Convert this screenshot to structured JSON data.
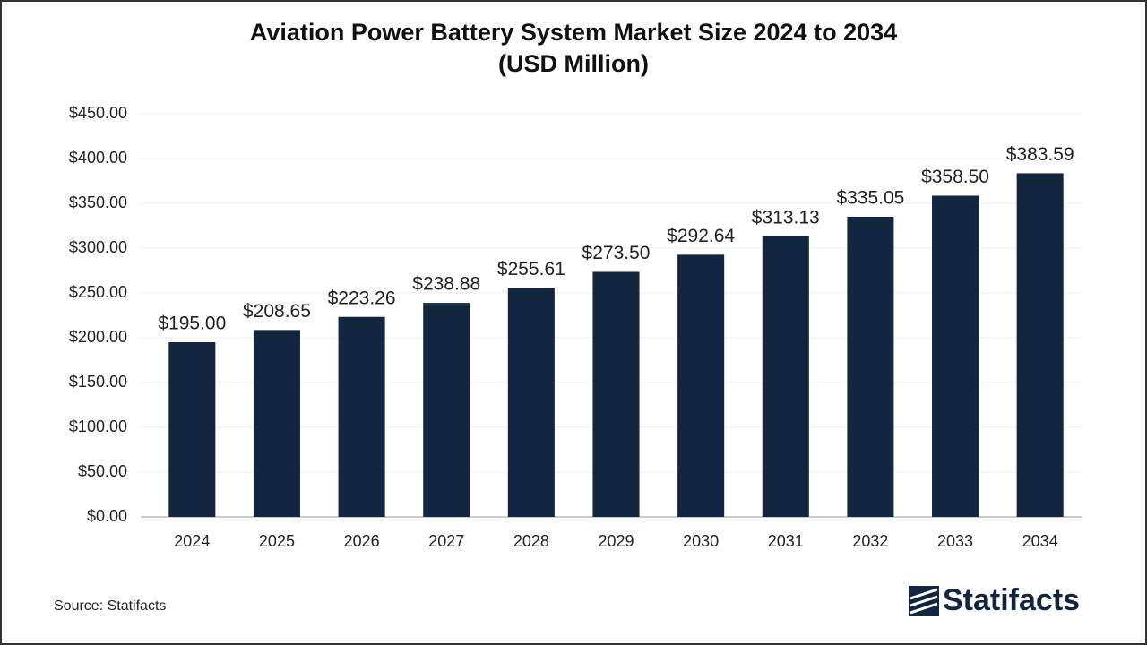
{
  "chart_data": {
    "type": "bar",
    "title": "Aviation Power Battery System Market Size 2024 to 2034",
    "subtitle": "(USD Million)",
    "categories": [
      "2024",
      "2025",
      "2026",
      "2027",
      "2028",
      "2029",
      "2030",
      "2031",
      "2032",
      "2033",
      "2034"
    ],
    "values": [
      195.0,
      208.65,
      223.26,
      238.88,
      255.61,
      273.5,
      292.64,
      313.13,
      335.05,
      358.5,
      383.59
    ],
    "value_labels": [
      "$195.00",
      "$208.65",
      "$223.26",
      "$238.88",
      "$255.61",
      "$273.50",
      "$292.64",
      "$313.13",
      "$335.05",
      "$358.50",
      "$383.59"
    ],
    "color": "#12263f",
    "ylim": [
      0,
      450
    ],
    "yticks": [
      {
        "value": 0,
        "label": "$0.00"
      },
      {
        "value": 50,
        "label": "$50.00"
      },
      {
        "value": 100,
        "label": "$100.00"
      },
      {
        "value": 150,
        "label": "$150.00"
      },
      {
        "value": 200,
        "label": "$200.00"
      },
      {
        "value": 250,
        "label": "$250.00"
      },
      {
        "value": 300,
        "label": "$300.00"
      },
      {
        "value": 350,
        "label": "$350.00"
      },
      {
        "value": 400,
        "label": "$400.00"
      },
      {
        "value": 450,
        "label": "$450.00"
      }
    ],
    "grid": true,
    "source": "Source: Statifacts",
    "brand": "Statifacts"
  }
}
